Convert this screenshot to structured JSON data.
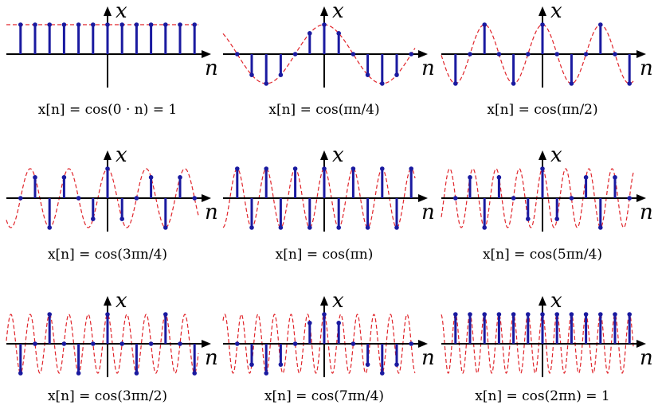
{
  "chart_data": [
    {
      "type": "stem",
      "caption": "x[n] = cos(0 · n) = 1",
      "omega_over_pi": 0,
      "n_range": [
        -6,
        6
      ],
      "xlabel": "n",
      "ylabel": "x",
      "stem_color": "#1a1aa0",
      "curve_color": "#e0242a"
    },
    {
      "type": "stem",
      "caption": "x[n] = cos(πn/4)",
      "omega_over_pi": 0.25,
      "n_range": [
        -6,
        6
      ],
      "xlabel": "n",
      "ylabel": "x",
      "stem_color": "#1a1aa0",
      "curve_color": "#e0242a"
    },
    {
      "type": "stem",
      "caption": "x[n] = cos(πn/2)",
      "omega_over_pi": 0.5,
      "n_range": [
        -6,
        6
      ],
      "xlabel": "n",
      "ylabel": "x",
      "stem_color": "#1a1aa0",
      "curve_color": "#e0242a"
    },
    {
      "type": "stem",
      "caption": "x[n] = cos(3πn/4)",
      "omega_over_pi": 0.75,
      "n_range": [
        -6,
        6
      ],
      "xlabel": "n",
      "ylabel": "x",
      "stem_color": "#1a1aa0",
      "curve_color": "#e0242a"
    },
    {
      "type": "stem",
      "caption": "x[n] = cos(πn)",
      "omega_over_pi": 1,
      "n_range": [
        -6,
        6
      ],
      "xlabel": "n",
      "ylabel": "x",
      "stem_color": "#1a1aa0",
      "curve_color": "#e0242a"
    },
    {
      "type": "stem",
      "caption": "x[n] = cos(5πn/4)",
      "omega_over_pi": 1.25,
      "n_range": [
        -6,
        6
      ],
      "xlabel": "n",
      "ylabel": "x",
      "stem_color": "#1a1aa0",
      "curve_color": "#e0242a"
    },
    {
      "type": "stem",
      "caption": "x[n] = cos(3πn/2)",
      "omega_over_pi": 1.5,
      "n_range": [
        -6,
        6
      ],
      "xlabel": "n",
      "ylabel": "x",
      "stem_color": "#1a1aa0",
      "curve_color": "#e0242a"
    },
    {
      "type": "stem",
      "caption": "x[n] = cos(7πn/4)",
      "omega_over_pi": 1.75,
      "n_range": [
        -6,
        6
      ],
      "xlabel": "n",
      "ylabel": "x",
      "stem_color": "#1a1aa0",
      "curve_color": "#e0242a"
    },
    {
      "type": "stem",
      "caption": "x[n] = cos(2πn) = 1",
      "omega_over_pi": 2,
      "n_range": [
        -6,
        6
      ],
      "xlabel": "n",
      "ylabel": "x",
      "stem_color": "#1a1aa0",
      "curve_color": "#e0242a"
    }
  ]
}
